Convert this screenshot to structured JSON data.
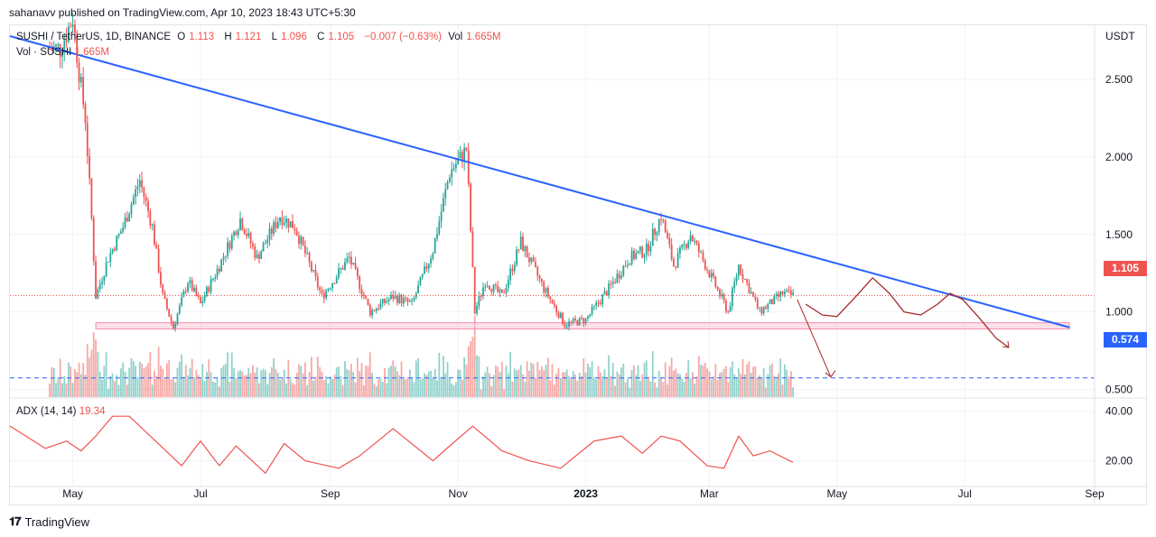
{
  "publisher_line": "sahanavv published on TradingView.com, Apr 10, 2023 18:43 UTC+5:30",
  "legend": {
    "symbol": "SUSHI / TetherUS, 1D, BINANCE",
    "open_label": "O",
    "open": "1.113",
    "high_label": "H",
    "high": "1.121",
    "low_label": "L",
    "low": "1.096",
    "close_label": "C",
    "close": "1.105",
    "change": "−0.007 (−0.63%)",
    "vol_label": "Vol",
    "vol": "1.665M",
    "vol_series": "Vol · SUSHI",
    "vol_value": "1.665M",
    "adx_label": "ADX (14, 14)",
    "adx_value": "19.34"
  },
  "axis": {
    "currency": "USDT",
    "price_ticks": [
      "2.500",
      "2.000",
      "1.500",
      "1.000",
      "0.500"
    ],
    "adx_ticks": [
      "40.00",
      "20.00"
    ],
    "time_labels": [
      "May",
      "Jul",
      "Sep",
      "Nov",
      "2023",
      "Mar",
      "May",
      "Jul",
      "Sep"
    ]
  },
  "tags": {
    "last_price": "1.105",
    "target_price": "0.574"
  },
  "colors": {
    "up": "#26a69a",
    "down": "#ef5350",
    "trendline": "#2962ff",
    "support_zone": "#f8bbd0",
    "projection": "#a52a2a",
    "adx": "#ef5350",
    "target_line": "#2962ff"
  },
  "branding": "TradingView",
  "chart_data": {
    "type": "candlestick",
    "symbol": "SUSHI/USDT",
    "interval": "1D",
    "x_range": [
      "2022-04-01",
      "2023-09-01"
    ],
    "y_range": [
      0.45,
      2.85
    ],
    "closes": [
      [
        2.7,
        "2022-04-25"
      ],
      [
        2.9,
        "2022-05-01"
      ],
      [
        2.55,
        "2022-05-04"
      ],
      [
        2.25,
        "2022-05-07"
      ],
      [
        1.6,
        "2022-05-10"
      ],
      [
        1.1,
        "2022-05-12"
      ],
      [
        1.35,
        "2022-05-18"
      ],
      [
        1.55,
        "2022-05-25"
      ],
      [
        1.85,
        "2022-06-02"
      ],
      [
        1.55,
        "2022-06-08"
      ],
      [
        1.1,
        "2022-06-13"
      ],
      [
        0.9,
        "2022-06-18"
      ],
      [
        1.2,
        "2022-06-25"
      ],
      [
        1.05,
        "2022-07-01"
      ],
      [
        1.3,
        "2022-07-10"
      ],
      [
        1.6,
        "2022-07-20"
      ],
      [
        1.35,
        "2022-07-28"
      ],
      [
        1.62,
        "2022-08-08"
      ],
      [
        1.55,
        "2022-08-15"
      ],
      [
        1.1,
        "2022-08-28"
      ],
      [
        1.35,
        "2022-09-10"
      ],
      [
        1.0,
        "2022-09-20"
      ],
      [
        1.1,
        "2022-10-01"
      ],
      [
        1.05,
        "2022-10-10"
      ],
      [
        1.4,
        "2022-10-20"
      ],
      [
        1.9,
        "2022-10-28"
      ],
      [
        2.05,
        "2022-11-05"
      ],
      [
        1.0,
        "2022-11-09"
      ],
      [
        1.2,
        "2022-11-14"
      ],
      [
        1.1,
        "2022-11-22"
      ],
      [
        1.45,
        "2022-12-01"
      ],
      [
        1.15,
        "2022-12-12"
      ],
      [
        0.92,
        "2022-12-22"
      ],
      [
        0.95,
        "2023-01-01"
      ],
      [
        1.15,
        "2023-01-12"
      ],
      [
        1.35,
        "2023-01-22"
      ],
      [
        1.4,
        "2023-01-30"
      ],
      [
        1.62,
        "2023-02-06"
      ],
      [
        1.3,
        "2023-02-12"
      ],
      [
        1.5,
        "2023-02-20"
      ],
      [
        1.25,
        "2023-03-01"
      ],
      [
        1.0,
        "2023-03-10"
      ],
      [
        1.3,
        "2023-03-15"
      ],
      [
        1.0,
        "2023-03-25"
      ],
      [
        1.12,
        "2023-04-05"
      ],
      [
        1.105,
        "2023-04-10"
      ]
    ],
    "trendline": {
      "from": [
        "2022-04-01",
        2.78
      ],
      "to": [
        "2023-08-20",
        0.9
      ]
    },
    "support_zone": {
      "from": "2022-05-12",
      "to": "2023-08-20",
      "low": 0.89,
      "high": 0.93
    },
    "target_level": 0.574,
    "last_price": 1.105,
    "adx": {
      "name": "ADX (14, 14)",
      "last": 19.34,
      "y_range": [
        10,
        45
      ],
      "values": [
        [
          34,
          "2022-04-01"
        ],
        [
          25,
          "2022-04-18"
        ],
        [
          28,
          "2022-04-28"
        ],
        [
          24,
          "2022-05-05"
        ],
        [
          30,
          "2022-05-12"
        ],
        [
          38,
          "2022-05-20"
        ],
        [
          38,
          "2022-05-28"
        ],
        [
          26,
          "2022-06-12"
        ],
        [
          18,
          "2022-06-22"
        ],
        [
          28,
          "2022-07-01"
        ],
        [
          18,
          "2022-07-10"
        ],
        [
          26,
          "2022-07-18"
        ],
        [
          15,
          "2022-08-01"
        ],
        [
          27,
          "2022-08-10"
        ],
        [
          20,
          "2022-08-20"
        ],
        [
          17,
          "2022-09-05"
        ],
        [
          22,
          "2022-09-15"
        ],
        [
          33,
          "2022-10-01"
        ],
        [
          20,
          "2022-10-20"
        ],
        [
          26,
          "2022-10-28"
        ],
        [
          34,
          "2022-11-08"
        ],
        [
          24,
          "2022-11-22"
        ],
        [
          20,
          "2022-12-05"
        ],
        [
          17,
          "2022-12-20"
        ],
        [
          28,
          "2023-01-05"
        ],
        [
          30,
          "2023-01-18"
        ],
        [
          23,
          "2023-01-28"
        ],
        [
          30,
          "2023-02-06"
        ],
        [
          28,
          "2023-02-15"
        ],
        [
          18,
          "2023-02-28"
        ],
        [
          17,
          "2023-03-08"
        ],
        [
          30,
          "2023-03-15"
        ],
        [
          22,
          "2023-03-22"
        ],
        [
          24,
          "2023-03-30"
        ],
        [
          19.34,
          "2023-04-10"
        ]
      ]
    }
  }
}
